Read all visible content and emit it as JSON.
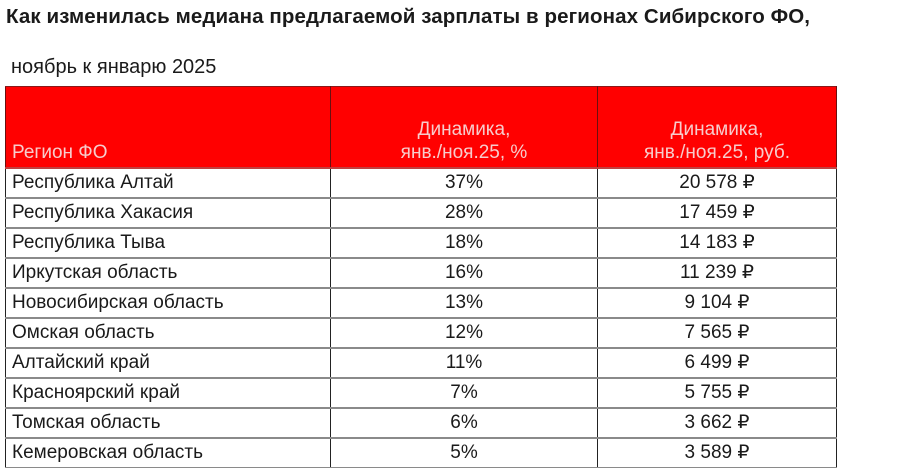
{
  "title": "Как изменилась медиана предлагаемой зарплаты в регионах Сибирского ФО,",
  "subtitle": "ноябрь к январю 2025",
  "colors": {
    "header_bg": "#ff0000",
    "header_text": "#f7cccc",
    "body_text": "#1a1a1a"
  },
  "table": {
    "headers": {
      "region": "Регион ФО",
      "pct_line1": "Динамика,",
      "pct_line2": "янв./ноя.25, %",
      "rub_line1": "Динамика,",
      "rub_line2": "янв./ноя.25, руб."
    },
    "rows": [
      {
        "region": "Республика Алтай",
        "pct": "37%",
        "rub": "20 578 ₽"
      },
      {
        "region": "Республика Хакасия",
        "pct": "28%",
        "rub": "17 459 ₽"
      },
      {
        "region": "Республика Тыва",
        "pct": "18%",
        "rub": "14 183 ₽"
      },
      {
        "region": "Иркутская область",
        "pct": "16%",
        "rub": "11 239 ₽"
      },
      {
        "region": "Новосибирская область",
        "pct": "13%",
        "rub": "9 104 ₽"
      },
      {
        "region": "Омская область",
        "pct": "12%",
        "rub": "7 565 ₽"
      },
      {
        "region": "Алтайский край",
        "pct": "11%",
        "rub": "6 499 ₽"
      },
      {
        "region": "Красноярский край",
        "pct": "7%",
        "rub": "5 755 ₽"
      },
      {
        "region": "Томская область",
        "pct": "6%",
        "rub": "3 662 ₽"
      },
      {
        "region": "Кемеровская область",
        "pct": "5%",
        "rub": "3 589 ₽"
      }
    ]
  }
}
